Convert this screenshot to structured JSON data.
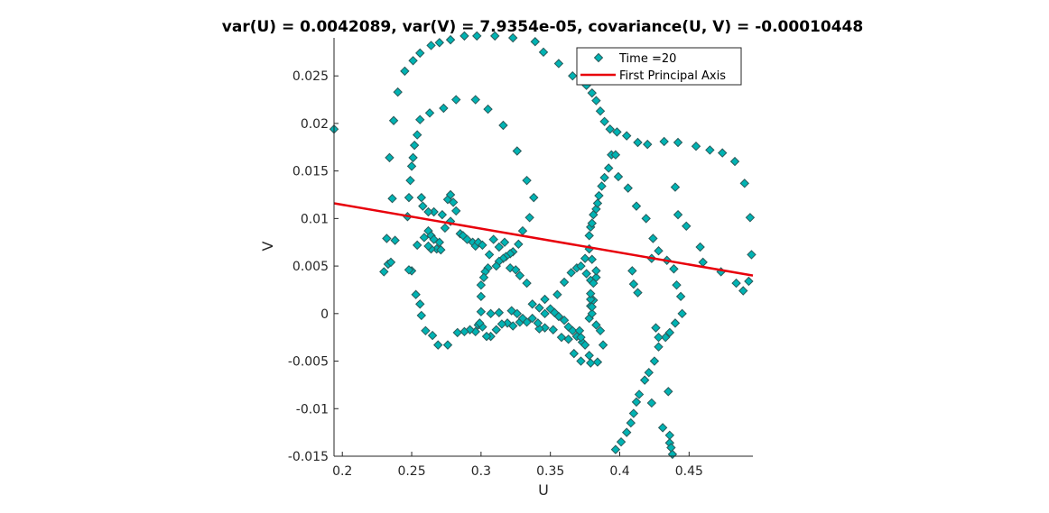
{
  "chart_data": {
    "type": "scatter",
    "title": "var(U) = 0.0042089, var(V) = 7.9354e-05, covariance(U, V) = -0.00010448",
    "xlabel": "U",
    "ylabel": "V",
    "xlim": [
      0.194,
      0.496
    ],
    "ylim": [
      -0.015,
      0.029
    ],
    "xticks": [
      0.2,
      0.25,
      0.3,
      0.35,
      0.4,
      0.45
    ],
    "xtick_labels": [
      "0.2",
      "0.25",
      "0.3",
      "0.35",
      "0.4",
      "0.45"
    ],
    "yticks": [
      -0.015,
      -0.01,
      -0.005,
      0,
      0.005,
      0.01,
      0.015,
      0.02,
      0.025
    ],
    "ytick_labels": [
      "-0.015",
      "-0.01",
      "-0.005",
      "0",
      "0.005",
      "0.01",
      "0.015",
      "0.02",
      "0.025"
    ],
    "legend": {
      "position": "top-right",
      "entries": [
        "Time =20",
        "First Principal Axis"
      ]
    },
    "series": [
      {
        "name": "Time =20",
        "kind": "scatter",
        "marker": "diamond",
        "color": "#00b3b3",
        "edge_color": "#2a5a5a",
        "points": [
          [
            0.194,
            0.0194
          ],
          [
            0.234,
            0.0164
          ],
          [
            0.237,
            0.0203
          ],
          [
            0.24,
            0.0233
          ],
          [
            0.245,
            0.0255
          ],
          [
            0.251,
            0.0266
          ],
          [
            0.256,
            0.0274
          ],
          [
            0.264,
            0.0282
          ],
          [
            0.27,
            0.0285
          ],
          [
            0.278,
            0.0288
          ],
          [
            0.288,
            0.0292
          ],
          [
            0.297,
            0.0292
          ],
          [
            0.31,
            0.0292
          ],
          [
            0.323,
            0.029
          ],
          [
            0.339,
            0.0286
          ],
          [
            0.345,
            0.0275
          ],
          [
            0.356,
            0.0263
          ],
          [
            0.366,
            0.025
          ],
          [
            0.376,
            0.024
          ],
          [
            0.38,
            0.0232
          ],
          [
            0.383,
            0.0224
          ],
          [
            0.386,
            0.0213
          ],
          [
            0.389,
            0.0202
          ],
          [
            0.393,
            0.0194
          ],
          [
            0.398,
            0.0191
          ],
          [
            0.405,
            0.0187
          ],
          [
            0.413,
            0.018
          ],
          [
            0.42,
            0.0178
          ],
          [
            0.432,
            0.0181
          ],
          [
            0.442,
            0.018
          ],
          [
            0.455,
            0.0176
          ],
          [
            0.465,
            0.0172
          ],
          [
            0.474,
            0.0169
          ],
          [
            0.483,
            0.016
          ],
          [
            0.49,
            0.0137
          ],
          [
            0.494,
            0.0101
          ],
          [
            0.495,
            0.0062
          ],
          [
            0.493,
            0.0034
          ],
          [
            0.489,
            0.0024
          ],
          [
            0.484,
            0.0032
          ],
          [
            0.473,
            0.0044
          ],
          [
            0.46,
            0.0054
          ],
          [
            0.458,
            0.007
          ],
          [
            0.232,
            0.0079
          ],
          [
            0.233,
            0.0052
          ],
          [
            0.235,
            0.0054
          ],
          [
            0.23,
            0.0044
          ],
          [
            0.238,
            0.0077
          ],
          [
            0.236,
            0.0121
          ],
          [
            0.247,
            0.0102
          ],
          [
            0.248,
            0.0122
          ],
          [
            0.249,
            0.014
          ],
          [
            0.25,
            0.0155
          ],
          [
            0.251,
            0.0164
          ],
          [
            0.252,
            0.0177
          ],
          [
            0.254,
            0.0188
          ],
          [
            0.256,
            0.0204
          ],
          [
            0.263,
            0.0211
          ],
          [
            0.273,
            0.0216
          ],
          [
            0.282,
            0.0225
          ],
          [
            0.296,
            0.0225
          ],
          [
            0.305,
            0.0215
          ],
          [
            0.316,
            0.0198
          ],
          [
            0.326,
            0.0171
          ],
          [
            0.333,
            0.014
          ],
          [
            0.338,
            0.0122
          ],
          [
            0.335,
            0.0101
          ],
          [
            0.33,
            0.0087
          ],
          [
            0.327,
            0.0073
          ],
          [
            0.323,
            0.0065
          ],
          [
            0.321,
            0.0063
          ],
          [
            0.318,
            0.006
          ],
          [
            0.316,
            0.0058
          ],
          [
            0.313,
            0.0055
          ],
          [
            0.311,
            0.005
          ],
          [
            0.305,
            0.0048
          ],
          [
            0.303,
            0.0044
          ],
          [
            0.302,
            0.0038
          ],
          [
            0.3,
            0.003
          ],
          [
            0.3,
            0.0018
          ],
          [
            0.3,
            0.0002
          ],
          [
            0.298,
            -0.0012
          ],
          [
            0.296,
            -0.0019
          ],
          [
            0.292,
            -0.0017
          ],
          [
            0.288,
            -0.0019
          ],
          [
            0.283,
            -0.002
          ],
          [
            0.276,
            -0.0033
          ],
          [
            0.269,
            -0.0033
          ],
          [
            0.265,
            -0.0023
          ],
          [
            0.26,
            -0.0018
          ],
          [
            0.257,
            -0.0002
          ],
          [
            0.256,
            0.001
          ],
          [
            0.253,
            0.002
          ],
          [
            0.25,
            0.0045
          ],
          [
            0.248,
            0.0046
          ],
          [
            0.254,
            0.0072
          ],
          [
            0.259,
            0.008
          ],
          [
            0.262,
            0.0087
          ],
          [
            0.264,
            0.0082
          ],
          [
            0.266,
            0.0078
          ],
          [
            0.27,
            0.0075
          ],
          [
            0.274,
            0.009
          ],
          [
            0.278,
            0.0097
          ],
          [
            0.272,
            0.0104
          ],
          [
            0.266,
            0.0107
          ],
          [
            0.262,
            0.0107
          ],
          [
            0.258,
            0.0113
          ],
          [
            0.257,
            0.0122
          ],
          [
            0.268,
            0.0068
          ],
          [
            0.264,
            0.0068
          ],
          [
            0.262,
            0.0071
          ],
          [
            0.271,
            0.0067
          ],
          [
            0.276,
            0.012
          ],
          [
            0.278,
            0.0125
          ],
          [
            0.28,
            0.0117
          ],
          [
            0.282,
            0.0108
          ],
          [
            0.285,
            0.0084
          ],
          [
            0.287,
            0.0082
          ],
          [
            0.29,
            0.0078
          ],
          [
            0.294,
            0.0075
          ],
          [
            0.296,
            0.0071
          ],
          [
            0.298,
            0.0075
          ],
          [
            0.301,
            0.0072
          ],
          [
            0.306,
            0.0062
          ],
          [
            0.309,
            0.0078
          ],
          [
            0.313,
            0.007
          ],
          [
            0.317,
            0.0075
          ],
          [
            0.321,
            0.0048
          ],
          [
            0.325,
            0.0046
          ],
          [
            0.328,
            0.004
          ],
          [
            0.333,
            0.0032
          ],
          [
            0.337,
            0.001
          ],
          [
            0.342,
            0.0006
          ],
          [
            0.346,
            0.0015
          ],
          [
            0.35,
            0.0005
          ],
          [
            0.353,
            0.0001
          ],
          [
            0.356,
            -0.0003
          ],
          [
            0.36,
            -0.0007
          ],
          [
            0.363,
            -0.0014
          ],
          [
            0.366,
            -0.0018
          ],
          [
            0.369,
            -0.0024
          ],
          [
            0.373,
            -0.003
          ],
          [
            0.378,
            -0.0044
          ],
          [
            0.372,
            -0.005
          ],
          [
            0.367,
            -0.0042
          ],
          [
            0.363,
            -0.0027
          ],
          [
            0.358,
            -0.0025
          ],
          [
            0.352,
            -0.0017
          ],
          [
            0.346,
            -0.0015
          ],
          [
            0.342,
            -0.0016
          ],
          [
            0.337,
            -0.0005
          ],
          [
            0.333,
            -0.0009
          ],
          [
            0.328,
            -0.0009
          ],
          [
            0.323,
            -0.0013
          ],
          [
            0.319,
            -0.001
          ],
          [
            0.315,
            -0.0011
          ],
          [
            0.311,
            -0.0017
          ],
          [
            0.307,
            -0.0024
          ],
          [
            0.304,
            -0.0024
          ],
          [
            0.301,
            -0.0014
          ],
          [
            0.299,
            -0.001
          ],
          [
            0.307,
            0.0
          ],
          [
            0.313,
            0.0001
          ],
          [
            0.322,
            0.0003
          ],
          [
            0.326,
            0.0
          ],
          [
            0.33,
            -0.0005
          ],
          [
            0.341,
            -0.001
          ],
          [
            0.346,
            0.0
          ],
          [
            0.355,
            0.002
          ],
          [
            0.36,
            0.0033
          ],
          [
            0.365,
            0.0043
          ],
          [
            0.369,
            0.0048
          ],
          [
            0.372,
            0.005
          ],
          [
            0.375,
            0.0058
          ],
          [
            0.376,
            0.0042
          ],
          [
            0.379,
            0.0035
          ],
          [
            0.381,
            0.0014
          ],
          [
            0.379,
            0.0008
          ],
          [
            0.378,
            -0.0005
          ],
          [
            0.383,
            -0.0012
          ],
          [
            0.386,
            -0.0018
          ],
          [
            0.388,
            -0.0033
          ],
          [
            0.384,
            -0.0051
          ],
          [
            0.379,
            -0.0052
          ],
          [
            0.375,
            -0.0033
          ],
          [
            0.372,
            -0.0025
          ],
          [
            0.371,
            -0.0018
          ],
          [
            0.38,
            0.0
          ],
          [
            0.38,
            0.0007
          ],
          [
            0.379,
            0.0015
          ],
          [
            0.379,
            0.0021
          ],
          [
            0.381,
            0.0032
          ],
          [
            0.383,
            0.0038
          ],
          [
            0.383,
            0.0045
          ],
          [
            0.38,
            0.0057
          ],
          [
            0.378,
            0.0068
          ],
          [
            0.378,
            0.0082
          ],
          [
            0.379,
            0.0091
          ],
          [
            0.38,
            0.0095
          ],
          [
            0.381,
            0.0104
          ],
          [
            0.383,
            0.011
          ],
          [
            0.384,
            0.0116
          ],
          [
            0.385,
            0.0124
          ],
          [
            0.387,
            0.0134
          ],
          [
            0.389,
            0.0143
          ],
          [
            0.392,
            0.0153
          ],
          [
            0.394,
            0.0167
          ],
          [
            0.397,
            0.0167
          ],
          [
            0.399,
            0.0144
          ],
          [
            0.406,
            0.0132
          ],
          [
            0.412,
            0.0113
          ],
          [
            0.419,
            0.01
          ],
          [
            0.424,
            0.0079
          ],
          [
            0.428,
            0.0066
          ],
          [
            0.434,
            0.0056
          ],
          [
            0.439,
            0.0047
          ],
          [
            0.441,
            0.003
          ],
          [
            0.444,
            0.0018
          ],
          [
            0.445,
            0.0
          ],
          [
            0.44,
            -0.001
          ],
          [
            0.436,
            -0.002
          ],
          [
            0.433,
            -0.0025
          ],
          [
            0.428,
            -0.0035
          ],
          [
            0.425,
            -0.005
          ],
          [
            0.421,
            -0.0062
          ],
          [
            0.418,
            -0.007
          ],
          [
            0.414,
            -0.0085
          ],
          [
            0.412,
            -0.0093
          ],
          [
            0.41,
            -0.0105
          ],
          [
            0.408,
            -0.0115
          ],
          [
            0.405,
            -0.0125
          ],
          [
            0.401,
            -0.0135
          ],
          [
            0.397,
            -0.0143
          ],
          [
            0.423,
            0.0058
          ],
          [
            0.413,
            0.0022
          ],
          [
            0.41,
            0.0031
          ],
          [
            0.409,
            0.0045
          ],
          [
            0.431,
            -0.012
          ],
          [
            0.436,
            -0.0128
          ],
          [
            0.436,
            -0.0136
          ],
          [
            0.437,
            -0.0141
          ],
          [
            0.438,
            -0.0148
          ],
          [
            0.435,
            -0.0082
          ],
          [
            0.423,
            -0.0094
          ],
          [
            0.426,
            -0.0015
          ],
          [
            0.428,
            -0.0025
          ],
          [
            0.44,
            0.0133
          ],
          [
            0.442,
            0.0104
          ],
          [
            0.448,
            0.0092
          ]
        ]
      },
      {
        "name": "First Principal Axis",
        "kind": "line",
        "color": "#e8000b",
        "points": [
          [
            0.194,
            0.0116
          ],
          [
            0.496,
            0.004
          ]
        ]
      }
    ]
  }
}
